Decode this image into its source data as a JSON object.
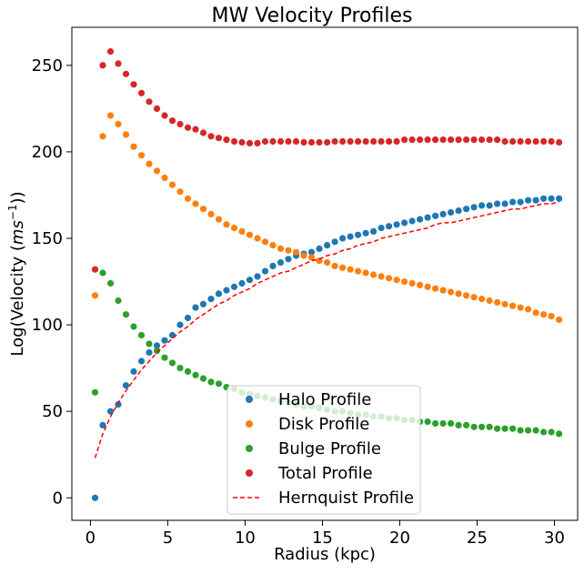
{
  "chart_data": {
    "type": "scatter",
    "title": "MW Velocity Profiles",
    "xlabel": "Radius (kpc)",
    "ylabel": "Log(Velocity (ms⁻¹))",
    "xlim": [
      -1.2,
      31.5
    ],
    "ylim": [
      -13,
      272
    ],
    "x_ticks": [
      0,
      5,
      10,
      15,
      20,
      25,
      30
    ],
    "y_ticks": [
      0,
      50,
      100,
      150,
      200,
      250
    ],
    "grid": false,
    "legend_position": "lower-center",
    "x": [
      0.3,
      0.8,
      1.3,
      1.8,
      2.3,
      2.8,
      3.3,
      3.8,
      4.3,
      4.8,
      5.3,
      5.8,
      6.3,
      6.8,
      7.3,
      7.8,
      8.3,
      8.8,
      9.3,
      9.8,
      10.3,
      10.8,
      11.3,
      11.8,
      12.3,
      12.8,
      13.3,
      13.8,
      14.3,
      14.8,
      15.3,
      15.8,
      16.3,
      16.8,
      17.3,
      17.8,
      18.3,
      18.8,
      19.3,
      19.8,
      20.3,
      20.8,
      21.3,
      21.8,
      22.3,
      22.8,
      23.3,
      23.8,
      24.3,
      24.8,
      25.3,
      25.8,
      26.3,
      26.8,
      27.3,
      27.8,
      28.3,
      28.8,
      29.3,
      29.8,
      30.3
    ],
    "series": [
      {
        "name": "Halo Profile",
        "color": "#1f77b4",
        "marker": "circle",
        "values": [
          0,
          42,
          50,
          54,
          65,
          73,
          79,
          84,
          88,
          91,
          94,
          100,
          104,
          110,
          112,
          115,
          118,
          120,
          122,
          124,
          126,
          128,
          131,
          134,
          136,
          138,
          140,
          141,
          142,
          144,
          146,
          148,
          150,
          151,
          152,
          153,
          154,
          156,
          157,
          158,
          159,
          160,
          161,
          162,
          163,
          164,
          165,
          166,
          167,
          168,
          169,
          169,
          170,
          170,
          171,
          171,
          172,
          172,
          173,
          173,
          173
        ]
      },
      {
        "name": "Disk Profile",
        "color": "#ff7f0e",
        "marker": "circle",
        "values": [
          117,
          209,
          221,
          216,
          210,
          203,
          198,
          193,
          189,
          185,
          181,
          177,
          173,
          170,
          167,
          164,
          161,
          158,
          156,
          154,
          152,
          150,
          148,
          146,
          144,
          143,
          142,
          140,
          139,
          137,
          136,
          134,
          133,
          132,
          131,
          130,
          129,
          128,
          127,
          126,
          125,
          124,
          123,
          122,
          121,
          120,
          119,
          118,
          117,
          116,
          115,
          114,
          113,
          112,
          111,
          110,
          109,
          107,
          106,
          105,
          103
        ]
      },
      {
        "name": "Bulge Profile",
        "color": "#2ca02c",
        "marker": "circle",
        "values": [
          61,
          130,
          124,
          114,
          106,
          99,
          94,
          89,
          85,
          81,
          78,
          75,
          73,
          71,
          69,
          67,
          66,
          64,
          63,
          61,
          60,
          59,
          58,
          57,
          56,
          55,
          54,
          53,
          53,
          52,
          51,
          50,
          50,
          49,
          48,
          48,
          47,
          47,
          46,
          46,
          45,
          45,
          44,
          44,
          43,
          43,
          43,
          42,
          42,
          41,
          41,
          41,
          40,
          40,
          40,
          39,
          39,
          39,
          38,
          38,
          37
        ]
      },
      {
        "name": "Total Profile",
        "color": "#d62728",
        "marker": "circle",
        "values": [
          132,
          250,
          258,
          251,
          245,
          239,
          234,
          229,
          225,
          221,
          218,
          216,
          214,
          213,
          211,
          209,
          208,
          207,
          206,
          205.5,
          205,
          205,
          206,
          206,
          206,
          206,
          206,
          205.5,
          205.5,
          205.5,
          205.5,
          206,
          206,
          206,
          206,
          206,
          206,
          206,
          206,
          206,
          207,
          207,
          207,
          207,
          207,
          207,
          207,
          207,
          207,
          207,
          207,
          207,
          207,
          206,
          206,
          206,
          206,
          206,
          206,
          206,
          205.5
        ]
      },
      {
        "name": "Hernquist Profile",
        "color": "#ff0000",
        "marker": "dashed-line",
        "curve": {
          "x": [
            0.3,
            0.8,
            1.3,
            1.8,
            2.3,
            2.8,
            3.3,
            3.8,
            4.3,
            4.8,
            5.3,
            5.8,
            6.3,
            6.8,
            7.3,
            7.8,
            8.3,
            8.8,
            9.3,
            9.8,
            10.3,
            10.8,
            11.3,
            11.8,
            12.3,
            12.8,
            13.3,
            13.8,
            14.3,
            14.8,
            15.3,
            15.8,
            16.3,
            16.8,
            17.3,
            17.8,
            18.3,
            18.8,
            19.3,
            19.8,
            20.3,
            20.8,
            21.3,
            21.8,
            22.3,
            22.8,
            23.3,
            23.8,
            24.3,
            24.8,
            25.3,
            25.8,
            26.3,
            26.8,
            27.3,
            27.8,
            28.3,
            28.8,
            29.3,
            29.8,
            30.3
          ],
          "y": [
            23,
            37,
            47,
            55,
            62,
            68,
            74,
            79,
            84,
            88,
            92,
            96,
            99,
            103,
            106,
            109,
            112,
            114,
            117,
            119,
            121,
            124,
            126,
            128,
            130,
            131,
            133,
            135,
            137,
            138,
            140,
            141,
            143,
            144,
            146,
            147,
            148,
            150,
            151,
            152,
            153,
            154,
            155,
            156,
            158,
            159,
            159,
            160,
            161,
            162,
            163,
            164,
            165,
            166,
            167,
            167,
            168,
            169,
            170,
            170,
            171
          ]
        }
      }
    ]
  }
}
